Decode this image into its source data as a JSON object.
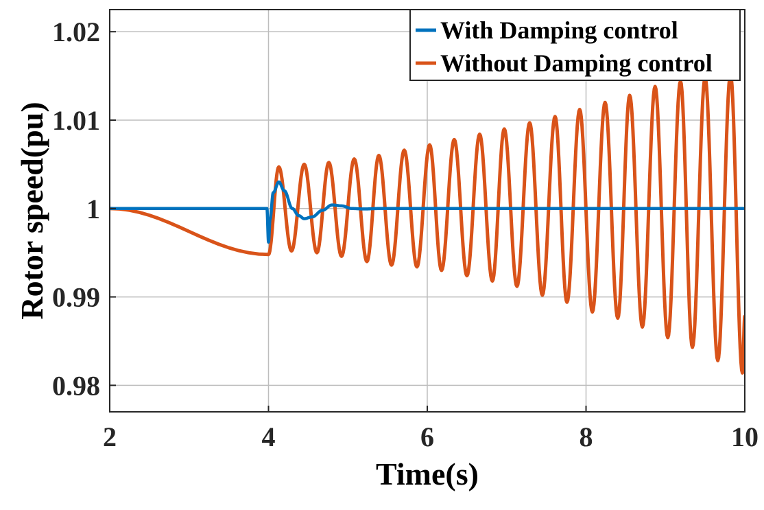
{
  "chart_data": {
    "type": "line",
    "xlabel": "Time(s)",
    "ylabel": "Rotor speed(pu)",
    "xlim": [
      2,
      10
    ],
    "ylim": [
      0.977,
      1.0225
    ],
    "x_ticks": [
      2,
      4,
      6,
      8,
      10
    ],
    "x_tick_labels": [
      "2",
      "4",
      "6",
      "8",
      "10"
    ],
    "y_ticks": [
      0.98,
      0.99,
      1.0,
      1.01,
      1.02
    ],
    "y_tick_labels": [
      "0.98",
      "0.99",
      "1",
      "1.01",
      "1.02"
    ],
    "grid": true,
    "legend_position": "top-right",
    "series": [
      {
        "name": "With Damping control",
        "color": "#0072BD",
        "x": [
          2.0,
          3.98,
          4.0,
          4.02,
          4.06,
          4.13,
          4.2,
          4.3,
          4.38,
          4.45,
          4.55,
          4.68,
          4.8,
          4.92,
          5.05,
          5.2,
          5.4,
          6.0,
          8.0,
          10.0
        ],
        "y": [
          1.0,
          1.0,
          0.9962,
          0.9988,
          1.0018,
          1.003,
          1.002,
          1.0,
          0.9992,
          0.99885,
          0.99905,
          0.9998,
          1.0004,
          1.0003,
          1.0,
          0.99995,
          1.0,
          1.0,
          1.0,
          1.0
        ]
      },
      {
        "name": "Without Damping control",
        "color": "#D95319",
        "x": [
          2.0,
          4.0,
          4.13,
          4.29,
          4.45,
          4.61,
          4.76,
          4.92,
          5.08,
          5.24,
          5.39,
          5.55,
          5.71,
          5.87,
          6.03,
          6.18,
          6.34,
          6.5,
          6.66,
          6.82,
          6.97,
          7.13,
          7.29,
          7.45,
          7.61,
          7.76,
          7.92,
          8.08,
          8.24,
          8.4,
          8.55,
          8.71,
          8.87,
          9.03,
          9.19,
          9.34,
          9.5,
          9.66,
          9.82,
          9.97,
          10.0
        ],
        "y": [
          1.0,
          0.9948,
          1.0047,
          0.9952,
          1.005,
          0.995,
          1.0052,
          0.9946,
          1.0056,
          0.994,
          1.006,
          0.9936,
          1.0066,
          0.9934,
          1.0072,
          0.993,
          1.0078,
          0.9924,
          1.0084,
          0.9918,
          1.009,
          0.9912,
          1.0097,
          0.9902,
          1.0104,
          0.9894,
          1.0112,
          0.9883,
          1.012,
          0.9876,
          1.0128,
          0.9866,
          1.0138,
          0.9854,
          1.0144,
          0.9843,
          1.0148,
          0.9828,
          1.0152,
          0.9814,
          0.9878
        ]
      }
    ]
  }
}
